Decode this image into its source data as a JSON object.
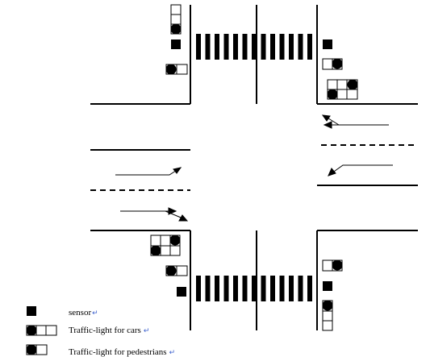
{
  "diagram": {
    "elements": [
      "sensor",
      "traffic-light-cars",
      "traffic-light-pedestrians",
      "crosswalk",
      "lane-arrows"
    ]
  },
  "legend": [
    {
      "label": "sensor",
      "icon": "sensor-square"
    },
    {
      "label": "Traffic-light for cars",
      "icon": "car-traffic-light"
    },
    {
      "label": "Traffic-light for pedestrians",
      "icon": "pedestrian-traffic-light"
    }
  ],
  "return_mark": "↵",
  "colors": {
    "ink": "#000000",
    "return_mark": "#3a5fcd"
  }
}
